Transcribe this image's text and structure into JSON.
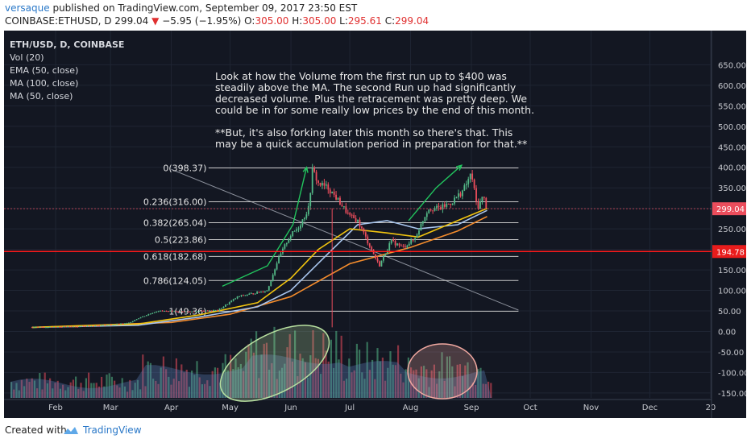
{
  "header": {
    "author": "versaque",
    "published": " published on TradingView.com, September 09, 2017 23:50 EST",
    "symbol": "COINBASE:ETHUSD, D",
    "price": "299.04",
    "change": "−5.95 (−1.95%)",
    "o_label": "O:",
    "o_val": "305.00",
    "h_label": "H:",
    "h_val": "305.00",
    "l_label": "L:",
    "l_val": "295.61",
    "c_label": "C:",
    "c_val": "299.04",
    "down_arrow": "▼"
  },
  "legend": {
    "symbol": "ETH/USD, D, COINBASE",
    "items": [
      "Vol (20)",
      "EMA (50, close)",
      "MA (100, close)",
      "MA (50, close)"
    ]
  },
  "annotation": "Look at how the Volume from the first run up to $400 was steadily above the MA. The second Run up had significantly decreased volume. Plus the retracement was pretty deep. We could be in for some really low prices by the end of this month.\n\n**But, it's also forking later this month so there's that. This may be a quick accumulation period in preparation for that.**",
  "footer": {
    "created_with": "Created with",
    "brand": "TradingView"
  },
  "colors": {
    "background": "#131722",
    "up": "#53b987",
    "down": "#eb4d5c",
    "ema50": "#f1c40f",
    "ma100": "#f48c2c",
    "ma50": "#a9c6ee",
    "fib": "#c8c8c8",
    "support": "#ff1a1a",
    "arrow": "#22c55e",
    "ellipse_green": "#b8e0a0",
    "ellipse_red": "#f0a8a0"
  },
  "chart_data": {
    "type": "candlestick",
    "title": "ETH/USD, D, COINBASE",
    "y_ticks": [
      650,
      600,
      550,
      500,
      450,
      400,
      350,
      300,
      250,
      200,
      150,
      100,
      50,
      0,
      -50,
      -100,
      -150
    ],
    "y_tick_labels": [
      "650.00",
      "600.00",
      "550.00",
      "500.00",
      "450.00",
      "400.00",
      "350.00",
      "300.00",
      "250.00",
      "200.00",
      "150.00",
      "100.00",
      "50.00",
      "0.00",
      "-50.00",
      "-100.00",
      "-150.00"
    ],
    "ylim": [
      -162,
      690
    ],
    "x_tick_labels": [
      "Feb",
      "Mar",
      "Apr",
      "May",
      "Jun",
      "Jul",
      "Aug",
      "Sep",
      "Oct",
      "Nov",
      "Dec",
      "20"
    ],
    "fib_levels": [
      {
        "label": "0(398.37)",
        "value": 398.37
      },
      {
        "label": "0.236(316.00)",
        "value": 316.0
      },
      {
        "label": "0.382(265.04)",
        "value": 265.04
      },
      {
        "label": "0.5(223.86)",
        "value": 223.86
      },
      {
        "label": "0.618(182.68)",
        "value": 182.68
      },
      {
        "label": "0.786(124.05)",
        "value": 124.05
      },
      {
        "label": "1(49.36)",
        "value": 49.36
      }
    ],
    "last_price": {
      "label": "299.04",
      "value": 299.04
    },
    "support": {
      "label": "194.78",
      "value": 194.78
    },
    "price_path": [
      [
        "2017-01-20",
        10.5
      ],
      [
        "2017-02-10",
        11.5
      ],
      [
        "2017-03-01",
        16
      ],
      [
        "2017-03-10",
        20
      ],
      [
        "2017-03-15",
        32
      ],
      [
        "2017-03-25",
        50
      ],
      [
        "2017-04-10",
        48
      ],
      [
        "2017-04-25",
        52
      ],
      [
        "2017-05-05",
        85
      ],
      [
        "2017-05-15",
        95
      ],
      [
        "2017-05-20",
        100
      ],
      [
        "2017-05-25",
        170
      ],
      [
        "2017-05-31",
        230
      ],
      [
        "2017-06-05",
        255
      ],
      [
        "2017-06-10",
        300
      ],
      [
        "2017-06-12",
        395
      ],
      [
        "2017-06-15",
        360
      ],
      [
        "2017-06-20",
        350
      ],
      [
        "2017-06-25",
        320
      ],
      [
        "2017-07-01",
        280
      ],
      [
        "2017-07-05",
        270
      ],
      [
        "2017-07-10",
        220
      ],
      [
        "2017-07-16",
        160
      ],
      [
        "2017-07-22",
        220
      ],
      [
        "2017-07-28",
        205
      ],
      [
        "2017-08-03",
        225
      ],
      [
        "2017-08-10",
        300
      ],
      [
        "2017-08-16",
        300
      ],
      [
        "2017-08-22",
        315
      ],
      [
        "2017-08-28",
        345
      ],
      [
        "2017-09-01",
        385
      ],
      [
        "2017-09-04",
        300
      ],
      [
        "2017-09-07",
        330
      ],
      [
        "2017-09-09",
        299.04
      ]
    ],
    "ema50_path": [
      [
        "2017-01-20",
        10
      ],
      [
        "2017-03-15",
        18
      ],
      [
        "2017-04-15",
        40
      ],
      [
        "2017-05-15",
        70
      ],
      [
        "2017-06-01",
        130
      ],
      [
        "2017-06-15",
        200
      ],
      [
        "2017-07-01",
        250
      ],
      [
        "2017-07-20",
        240
      ],
      [
        "2017-08-05",
        230
      ],
      [
        "2017-08-25",
        270
      ],
      [
        "2017-09-09",
        300
      ]
    ],
    "ma100_path": [
      [
        "2017-01-20",
        10
      ],
      [
        "2017-04-01",
        22
      ],
      [
        "2017-05-01",
        42
      ],
      [
        "2017-06-01",
        85
      ],
      [
        "2017-07-01",
        165
      ],
      [
        "2017-08-01",
        205
      ],
      [
        "2017-08-25",
        245
      ],
      [
        "2017-09-09",
        280
      ]
    ],
    "ma50_path": [
      [
        "2017-01-20",
        10
      ],
      [
        "2017-03-15",
        15
      ],
      [
        "2017-04-15",
        35
      ],
      [
        "2017-05-15",
        60
      ],
      [
        "2017-06-01",
        100
      ],
      [
        "2017-06-20",
        190
      ],
      [
        "2017-07-05",
        260
      ],
      [
        "2017-07-20",
        270
      ],
      [
        "2017-08-05",
        250
      ],
      [
        "2017-08-25",
        260
      ],
      [
        "2017-09-09",
        295
      ]
    ]
  }
}
